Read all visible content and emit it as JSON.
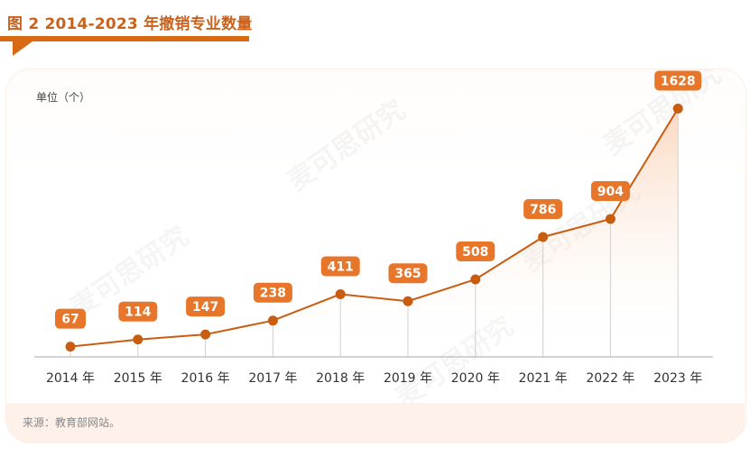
{
  "header": {
    "title": "图 2  2014-2023 年撤销专业数量"
  },
  "footer": {
    "source": "来源：教育部网站。"
  },
  "watermark": {
    "text": "麦可思研究"
  },
  "colors": {
    "accent": "#d96a14",
    "line": "#c85d12",
    "label_bg": "#e8762a",
    "axis": "#b9b9b9",
    "title": "#c8621c"
  },
  "chart_data": {
    "type": "line",
    "title": "2014-2023 年撤销专业数量",
    "ylabel": "单位（个）",
    "ylim": [
      0,
      1700
    ],
    "grid": false,
    "legend": "none",
    "area_fill": true,
    "categories": [
      "2014 年",
      "2015 年",
      "2016 年",
      "2017 年",
      "2018 年",
      "2019 年",
      "2020 年",
      "2021 年",
      "2022 年",
      "2023 年"
    ],
    "values": [
      67,
      114,
      147,
      238,
      411,
      365,
      508,
      786,
      904,
      1628
    ],
    "value_labels": [
      "67",
      "114",
      "147",
      "238",
      "411",
      "365",
      "508",
      "786",
      "904",
      "1628"
    ]
  }
}
